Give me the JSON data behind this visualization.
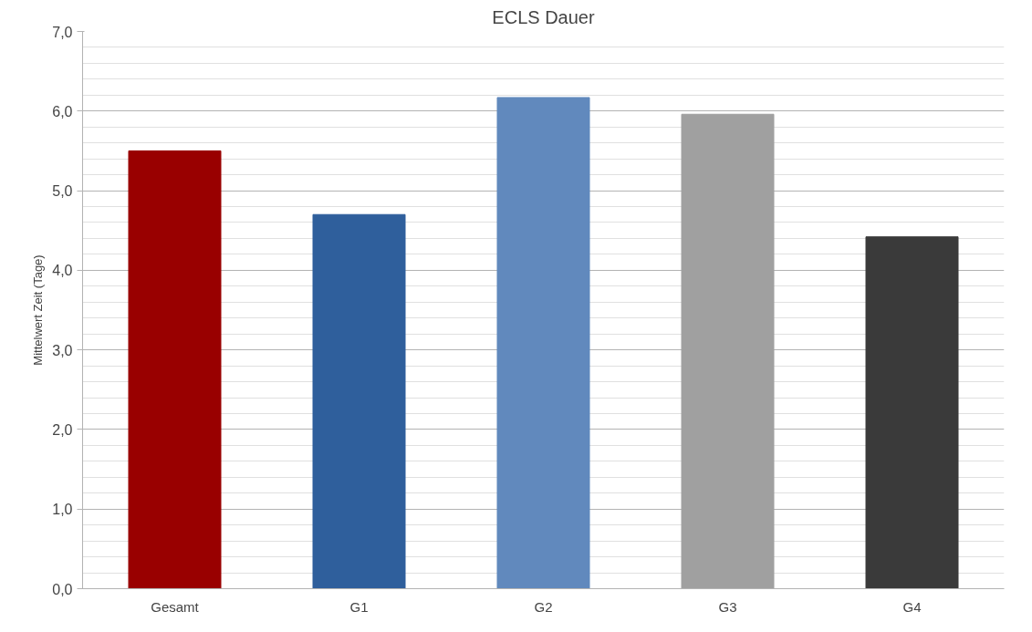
{
  "chart_data": {
    "type": "bar",
    "title": "ECLS Dauer",
    "ylabel": "Mittelwert Zeit (Tage)",
    "categories": [
      "Gesamt",
      "G1",
      "G2",
      "G3",
      "G4"
    ],
    "values": [
      5.5,
      4.7,
      6.17,
      5.96,
      4.42
    ],
    "colors": [
      "#990000",
      "#2f5f9c",
      "#6189bd",
      "#a0a0a0",
      "#3a3a3a"
    ],
    "ylim": [
      0,
      7
    ],
    "yticks": [
      {
        "value": 0,
        "label": "0,0"
      },
      {
        "value": 0.2,
        "label": null
      },
      {
        "value": 0.4,
        "label": null
      },
      {
        "value": 0.6,
        "label": null
      },
      {
        "value": 0.8,
        "label": null
      },
      {
        "value": 1,
        "label": "1,0"
      },
      {
        "value": 1.2,
        "label": null
      },
      {
        "value": 1.4,
        "label": null
      },
      {
        "value": 1.6,
        "label": null
      },
      {
        "value": 1.8,
        "label": null
      },
      {
        "value": 2,
        "label": "2,0"
      },
      {
        "value": 2.2,
        "label": null
      },
      {
        "value": 2.4,
        "label": null
      },
      {
        "value": 2.6,
        "label": null
      },
      {
        "value": 2.8,
        "label": null
      },
      {
        "value": 3,
        "label": "3,0"
      },
      {
        "value": 3.2,
        "label": null
      },
      {
        "value": 3.4,
        "label": null
      },
      {
        "value": 3.6,
        "label": null
      },
      {
        "value": 3.8,
        "label": null
      },
      {
        "value": 4,
        "label": "4,0"
      },
      {
        "value": 4.2,
        "label": null
      },
      {
        "value": 4.4,
        "label": null
      },
      {
        "value": 4.6,
        "label": null
      },
      {
        "value": 4.8,
        "label": null
      },
      {
        "value": 5,
        "label": "5,0"
      },
      {
        "value": 5.2,
        "label": null
      },
      {
        "value": 5.4,
        "label": null
      },
      {
        "value": 5.6,
        "label": null
      },
      {
        "value": 5.8,
        "label": null
      },
      {
        "value": 6,
        "label": "6,0"
      },
      {
        "value": 6.2,
        "label": null
      },
      {
        "value": 6.4,
        "label": null
      },
      {
        "value": 6.6,
        "label": null
      },
      {
        "value": 6.8,
        "label": null
      },
      {
        "value": 7,
        "label": "7,0"
      }
    ],
    "grid": "y"
  }
}
